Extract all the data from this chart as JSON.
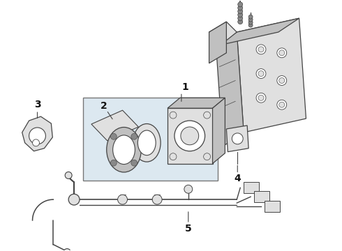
{
  "bg_color": "#ffffff",
  "line_color": "#444444",
  "fill_light": "#e0e0e0",
  "fill_mid": "#c0c0c0",
  "fill_dark": "#888888",
  "box_fill": "#dce8f0",
  "box_edge": "#777777",
  "label_color": "#111111",
  "figsize": [
    4.9,
    3.6
  ],
  "dpi": 100
}
